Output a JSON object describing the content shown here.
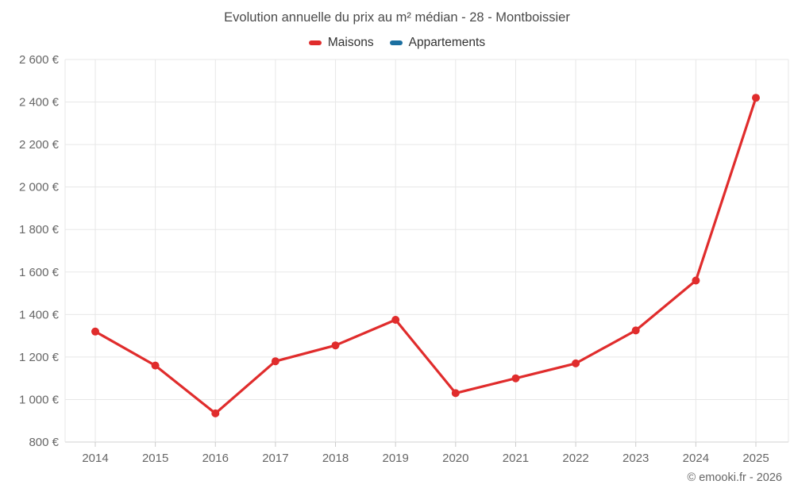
{
  "header": {
    "title": "Evolution annuelle du prix au m² médian - 28 - Montboissier"
  },
  "legend": {
    "items": [
      {
        "label": "Maisons",
        "color": "#e02c2c"
      },
      {
        "label": "Appartements",
        "color": "#1b6fa0"
      }
    ]
  },
  "footer": {
    "credit": "© emooki.fr - 2026"
  },
  "chart_data": {
    "type": "line",
    "title": "Evolution annuelle du prix au m² médian - 28 - Montboissier",
    "categories": [
      "2014",
      "2015",
      "2016",
      "2017",
      "2018",
      "2019",
      "2020",
      "2021",
      "2022",
      "2023",
      "2024",
      "2025"
    ],
    "series": [
      {
        "name": "Maisons",
        "color": "#e02c2c",
        "values": [
          1320,
          1160,
          935,
          1180,
          1255,
          1375,
          1030,
          1100,
          1170,
          1325,
          1560,
          2420
        ]
      },
      {
        "name": "Appartements",
        "color": "#1b6fa0",
        "values": []
      }
    ],
    "xlabel": "",
    "ylabel": "",
    "ytick_format": "{value} €",
    "ylim": [
      800,
      2600
    ],
    "ytick_step": 200,
    "grid": true,
    "legend_position": "top",
    "colors": {
      "grid_line": "#e7e7e7",
      "axis_line": "#d0d0d0",
      "tick": "#cccccc",
      "axis_label": "#666666",
      "title": "#4a4a4a"
    }
  }
}
